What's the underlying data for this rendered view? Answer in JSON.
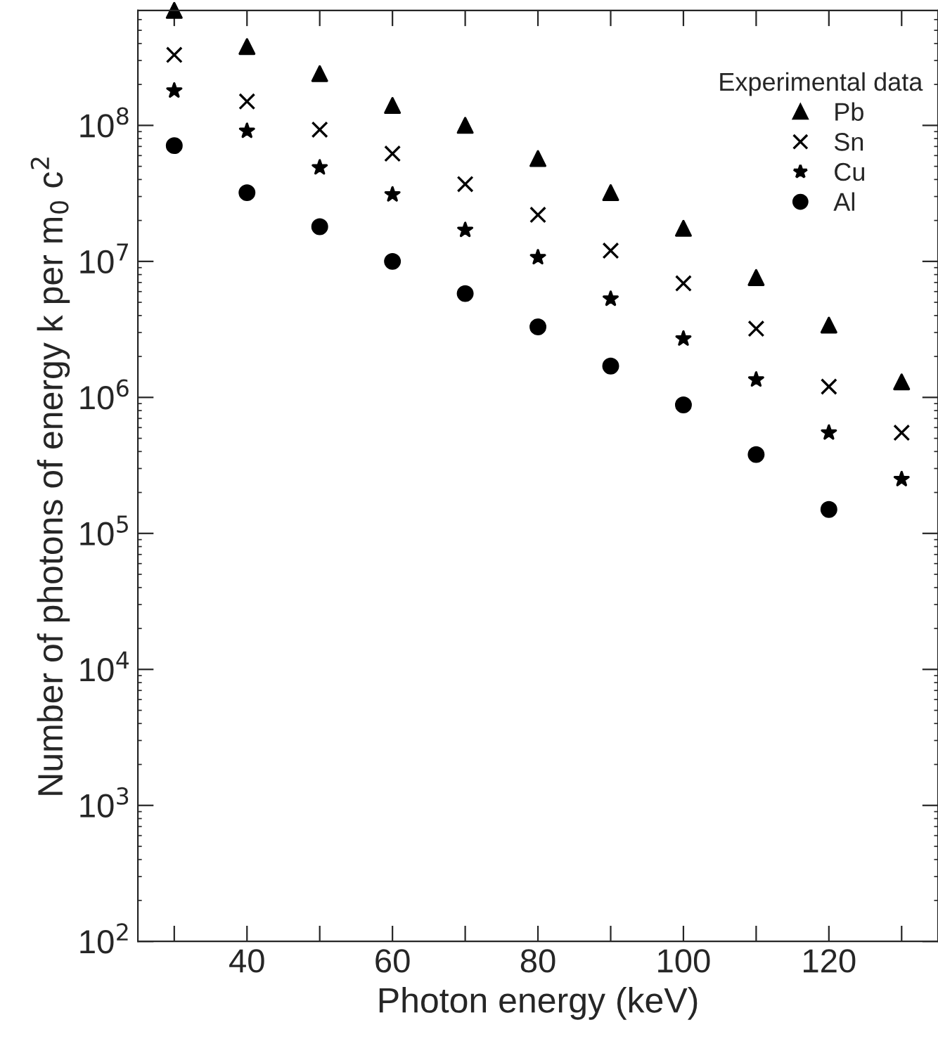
{
  "chart_data": {
    "type": "scatter",
    "xlabel": "Photon energy (keV)",
    "ylabel": "Number of photons of energy k per m$_{0}$ c$^{2}$",
    "legend_title": "Experimental data",
    "legend": "top right",
    "log": "y",
    "grid": false,
    "x": [
      30,
      40,
      50,
      60,
      70,
      80,
      90,
      100,
      110,
      120,
      130
    ],
    "xlim": [
      25,
      135
    ],
    "xticks": [
      {
        "value": 30,
        "label": null
      },
      40,
      {
        "value": 50,
        "label": null
      },
      60,
      {
        "value": 70,
        "label": null
      },
      80,
      {
        "value": 90,
        "label": null
      },
      100,
      {
        "value": 110,
        "label": null
      },
      120,
      {
        "value": 130,
        "label": null
      }
    ],
    "ylim": [
      100,
      700000000
    ],
    "yticks": [
      {
        "value": 100,
        "label": "10$^{2}$"
      },
      {
        "value": 1000,
        "label": "10$^{3}$"
      },
      {
        "value": 10000,
        "label": "10$^{4}$"
      },
      {
        "value": 100000,
        "label": "10$^{5}$"
      },
      {
        "value": 1000000,
        "label": "10$^{6}$"
      },
      {
        "value": 10000000,
        "label": "10$^{7}$"
      },
      {
        "value": 100000000,
        "label": "10$^{8}$"
      }
    ],
    "series": [
      {
        "name": "Pb",
        "color": "#000000",
        "marker": "triangle",
        "values": [
          700000000,
          380000000,
          240000000,
          140000000,
          100000000,
          57000000,
          32000000,
          17500000,
          7600000,
          3400000,
          1300000
        ]
      },
      {
        "name": "Sn",
        "color": "#000000",
        "marker": "cross",
        "values": [
          330000000,
          150000000,
          93000000,
          62000000,
          37000000,
          22000000,
          12000000,
          6900000,
          3200000,
          1200000,
          550000
        ]
      },
      {
        "name": "Cu",
        "color": "#000000",
        "marker": "star",
        "values": [
          180000000,
          91000000,
          49000000,
          31000000,
          17000000,
          10700000,
          5300000,
          2700000,
          1350000,
          550000,
          250000
        ]
      },
      {
        "name": "Al",
        "color": "#000000",
        "marker": "circle",
        "values": [
          71000000,
          32000000,
          18000000,
          10000000,
          5800000,
          3300000,
          1700000,
          880000,
          380000,
          150000,
          null
        ]
      }
    ]
  }
}
